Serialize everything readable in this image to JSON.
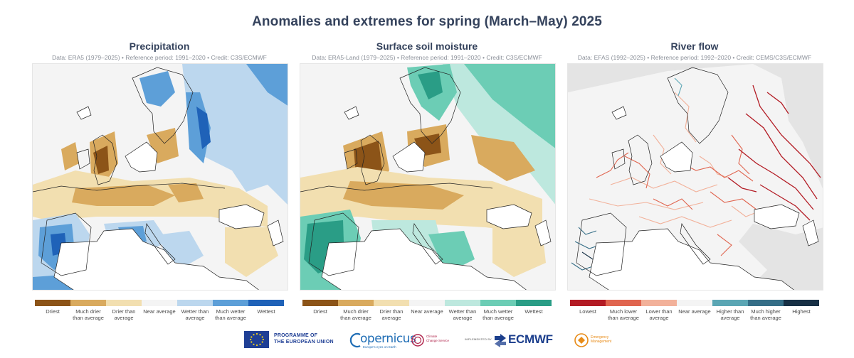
{
  "title": "Anomalies and extremes for spring (March–May) 2025",
  "panels": [
    {
      "title": "Precipitation",
      "subtitle": "Data: ERA5 (1979–2025) • Reference period: 1991–2020 • Credit: C3S/ECMWF",
      "legend_colors": [
        "#8c5418",
        "#d9aa5e",
        "#f2dfb0",
        "#f4f4f4",
        "#bcd7ee",
        "#5d9fd8",
        "#1f62b8"
      ],
      "legend_labels": [
        "Driest",
        "Much drier than average",
        "Drier than average",
        "Near average",
        "Wetter than average",
        "Much wetter than average",
        "Wettest"
      ]
    },
    {
      "title": "Surface soil moisture",
      "subtitle": "Data: ERA5-Land (1979–2025) • Reference period: 1991–2020 • Credit: C3S/ECMWF",
      "legend_colors": [
        "#8c5418",
        "#d9aa5e",
        "#f2dfb0",
        "#f4f4f4",
        "#bde8de",
        "#6ccdb5",
        "#2a9d86"
      ],
      "legend_labels": [
        "Driest",
        "Much drier than average",
        "Drier than average",
        "Near average",
        "Wetter than average",
        "Much wetter than average",
        "Wettest"
      ]
    },
    {
      "title": "River flow",
      "subtitle": "Data: EFAS (1992–2025) • Reference period: 1992–2020 • Credit: CEMS/C3S/ECMWF",
      "legend_colors": [
        "#b31b24",
        "#e0654f",
        "#f2b19a",
        "#f4f4f4",
        "#5ba6b4",
        "#356e87",
        "#173045"
      ],
      "legend_labels": [
        "Lowest",
        "Much lower than average",
        "Lower than average",
        "Near average",
        "Higher than average",
        "Much higher than average",
        "Highest"
      ]
    }
  ],
  "footer": {
    "eu_line1": "PROGRAMME OF",
    "eu_line2": "THE EUROPEAN UNION",
    "copernicus": "opernicus",
    "copernicus_tag": "Europe's eyes on Earth",
    "c3s_line1": "Climate",
    "c3s_line2": "Change Service",
    "implemented_by": "IMPLEMENTED BY",
    "ecmwf": "ECMWF",
    "cems_line1": "Emergency",
    "cems_line2": "Management"
  }
}
